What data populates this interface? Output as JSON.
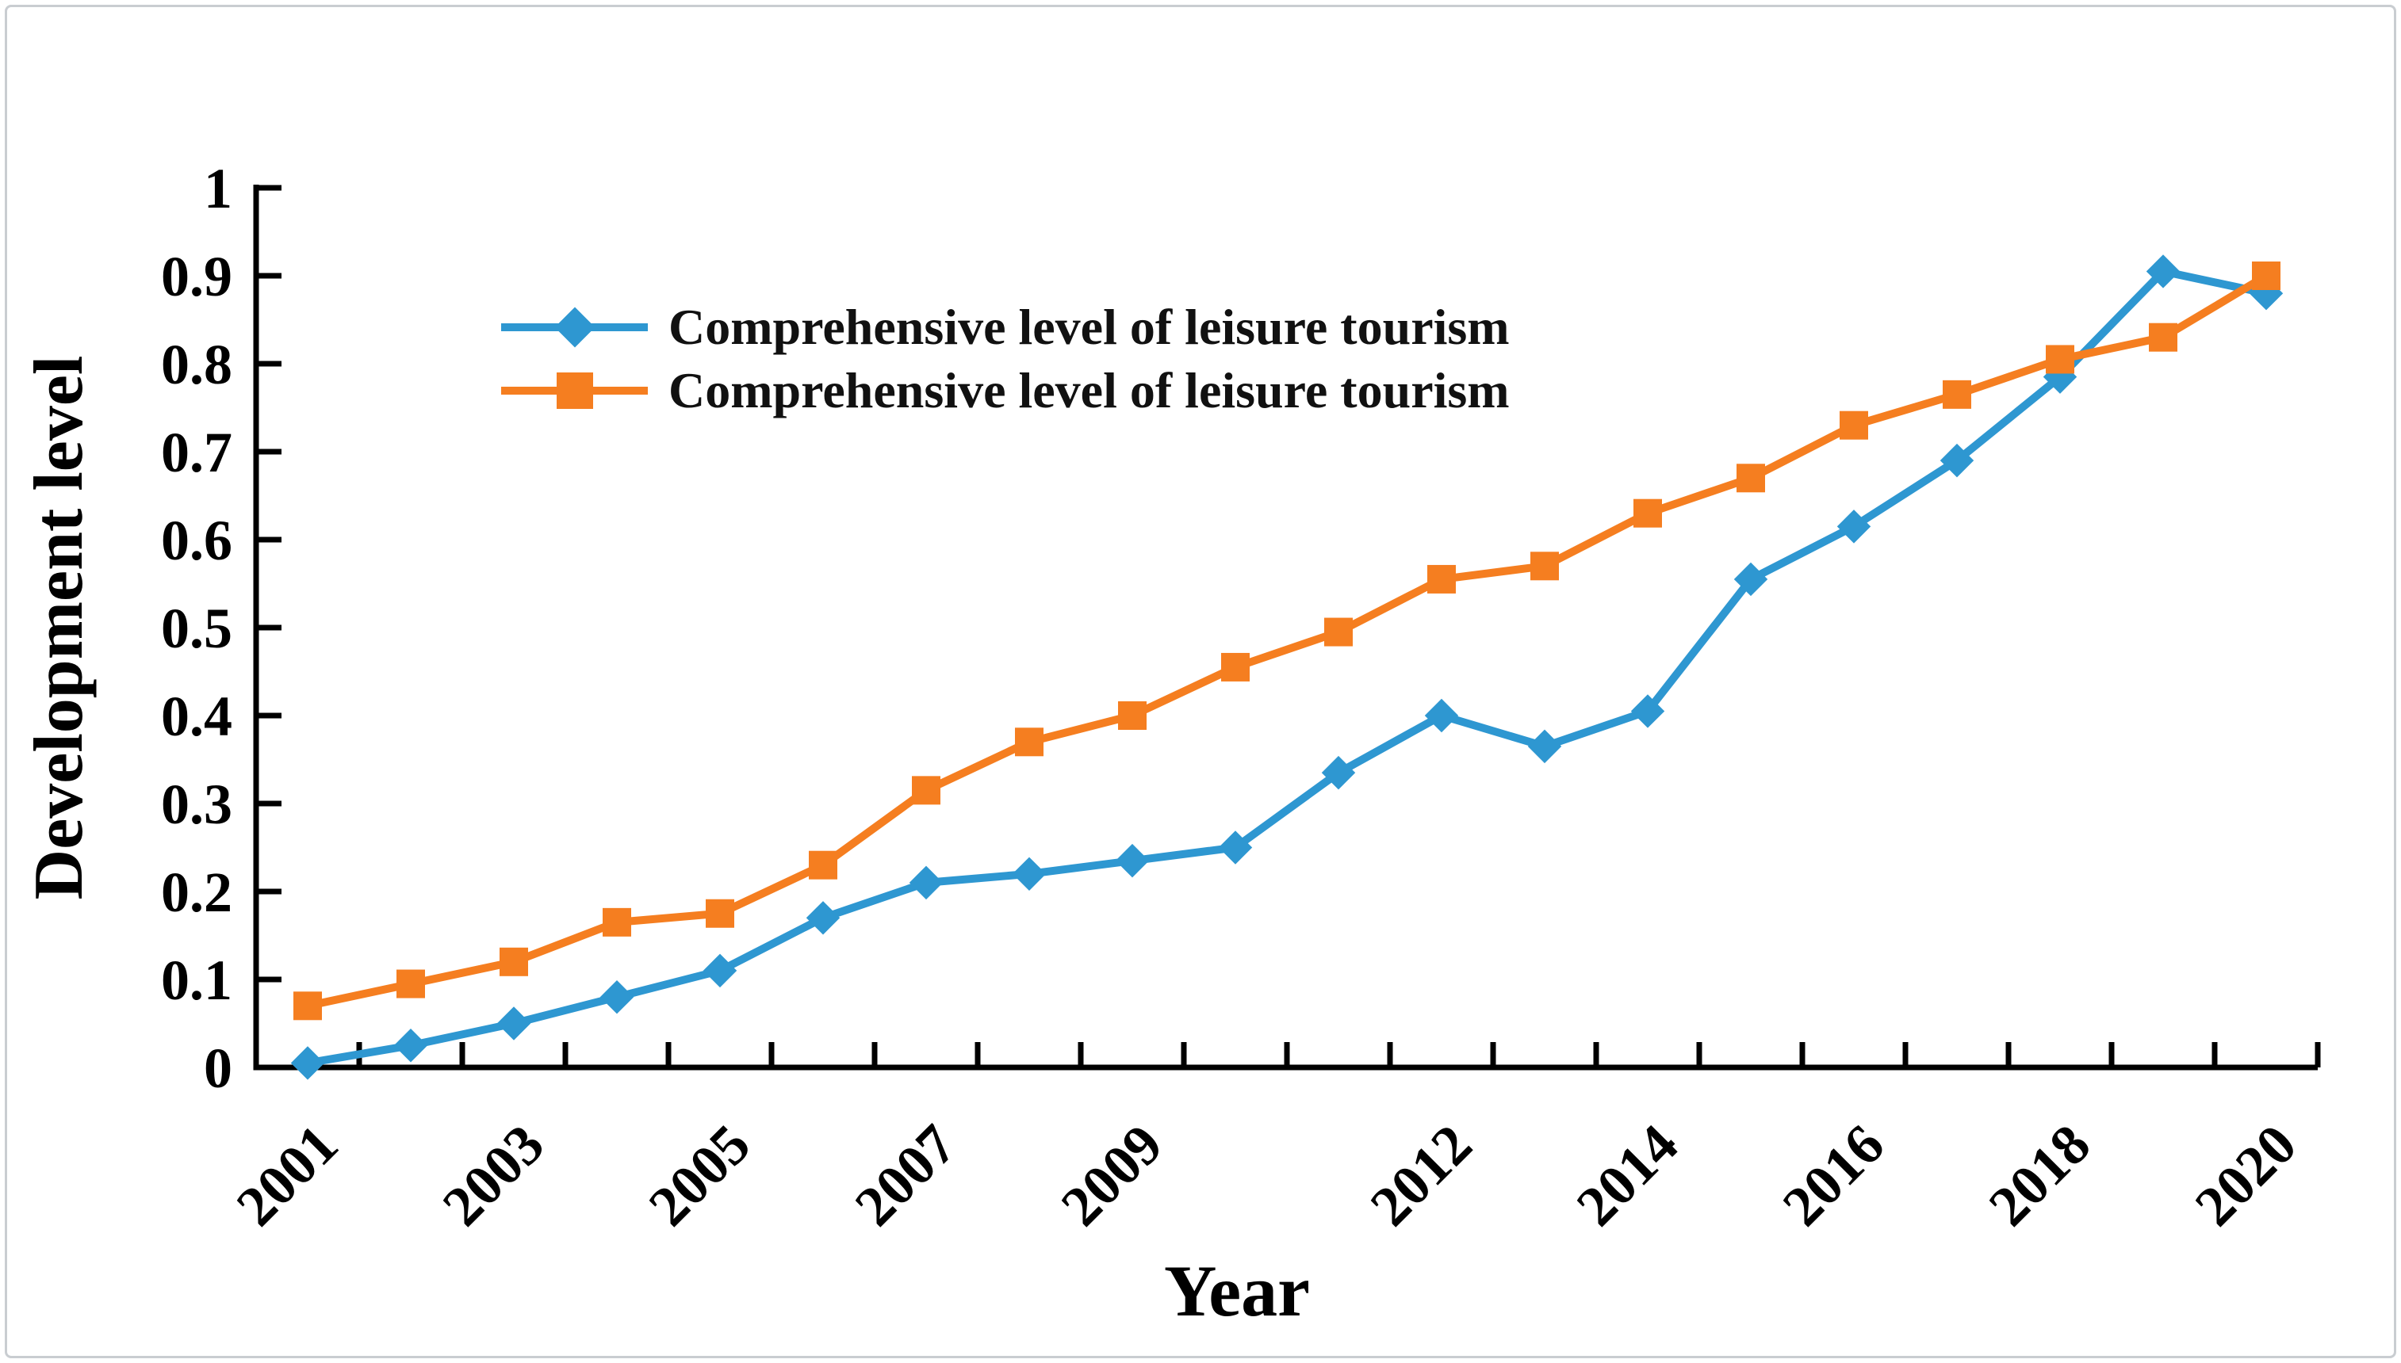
{
  "frame": {
    "border_color": "#c9cdd1",
    "background": "#ffffff"
  },
  "chart_data": {
    "type": "line",
    "title": "",
    "xlabel": "Year",
    "ylabel": "Development level",
    "x": [
      2001,
      2002,
      2003,
      2004,
      2005,
      2006,
      2007,
      2008,
      2009,
      2010,
      2011,
      2012,
      2013,
      2014,
      2015,
      2016,
      2017,
      2018,
      2019,
      2020
    ],
    "x_tick_labels": [
      "2001",
      "2003",
      "2005",
      "2007",
      "2009",
      "2012",
      "2014",
      "2016",
      "2018",
      "2020"
    ],
    "y_tick_labels": [
      "0",
      "0.1",
      "0.2",
      "0.3",
      "0.4",
      "0.5",
      "0.6",
      "0.7",
      "0.8",
      "0.9",
      "1"
    ],
    "ylim": [
      0,
      1
    ],
    "grid": false,
    "legend_position": "upper-left-inside",
    "axis_color": "#000000",
    "text_color": "#000000",
    "series": [
      {
        "name": "Comprehensive level of leisure tourism",
        "marker": "diamond",
        "color": "#2E97D1",
        "values": [
          0.005,
          0.025,
          0.05,
          0.08,
          0.11,
          0.17,
          0.21,
          0.22,
          0.235,
          0.25,
          0.335,
          0.4,
          0.365,
          0.405,
          0.555,
          0.615,
          0.69,
          0.785,
          0.905,
          0.88
        ]
      },
      {
        "name": "Comprehensive level of leisure tourism",
        "marker": "square",
        "color": "#F57E20",
        "values": [
          0.07,
          0.095,
          0.12,
          0.165,
          0.175,
          0.23,
          0.315,
          0.37,
          0.4,
          0.455,
          0.495,
          0.555,
          0.57,
          0.63,
          0.67,
          0.73,
          0.765,
          0.805,
          0.83,
          0.9
        ]
      }
    ]
  }
}
